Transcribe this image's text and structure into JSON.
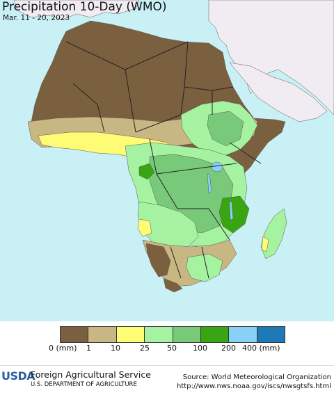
{
  "header": {
    "title": "Precipitation 10-Day (WMO)",
    "date_range": "Mar. 11 - 20, 2023"
  },
  "legend": {
    "colors": [
      "#7b6040",
      "#c9b783",
      "#fdfc74",
      "#a5f3a0",
      "#79c97b",
      "#3aa512",
      "#88d0f5",
      "#1e79b8"
    ],
    "labels": [
      "0 (mm)",
      "1",
      "10",
      "25",
      "50",
      "100",
      "200",
      "400 (mm)"
    ]
  },
  "map_colors": {
    "ocean": "#c9f0f5",
    "non_africa_land": "#f0ecf2",
    "dry": "#7b6040",
    "very_low": "#c9b783",
    "low": "#fdfc74",
    "moderate": "#a5f3a0",
    "medium": "#79c97b",
    "high": "#3aa512",
    "lake": "#88d0f5"
  },
  "footer": {
    "usda_logo_text": "USDA",
    "agency": "Foreign Agricultural Service",
    "department": "U.S. DEPARTMENT OF AGRICULTURE",
    "source_line": "Source: World Meteorological Organization",
    "url": "http://www.nws.noaa.gov/iscs/nwsgtsfs.html"
  }
}
